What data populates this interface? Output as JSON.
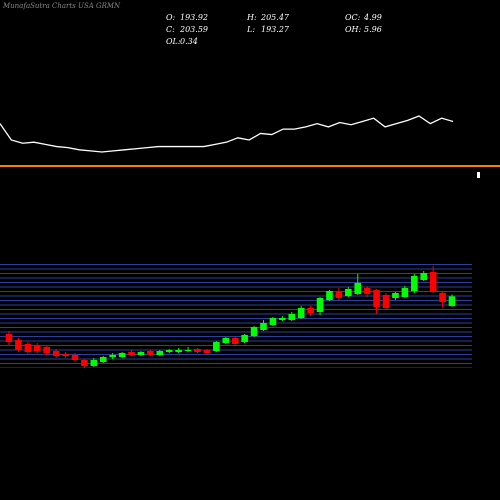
{
  "chart_data": {
    "type": "candlestick",
    "title": "MunafaSutra Charts USA GRMN",
    "stats": [
      {
        "label": "O:",
        "value": "193.92"
      },
      {
        "label": "H:",
        "value": "205.47"
      },
      {
        "label": "OC:",
        "value": "4.99"
      },
      {
        "label": "C:",
        "value": "203.59"
      },
      {
        "label": "L:",
        "value": "193.27"
      },
      {
        "label": "OH:",
        "value": "5.96"
      },
      {
        "label": "OL:",
        "value": "0.34"
      }
    ],
    "up_color": "#00ff00",
    "down_color": "#ff0000",
    "indicator": {
      "color": "#ffffff",
      "values": [
        75,
        60,
        57,
        58,
        56,
        54,
        53,
        51,
        50,
        49,
        50,
        51,
        52,
        53,
        54,
        54,
        54,
        54,
        54,
        56,
        58,
        62,
        60,
        66,
        65,
        70,
        70,
        72,
        75,
        72,
        76,
        74,
        77,
        80,
        72,
        75,
        78,
        82,
        75,
        80,
        77
      ]
    },
    "open": [
      166,
      160,
      156,
      155,
      153,
      149,
      146,
      145,
      140,
      134,
      138,
      143,
      143,
      148,
      145,
      149,
      145,
      148,
      148,
      149,
      151,
      150,
      149,
      157,
      162,
      158,
      164,
      170,
      175,
      180,
      180,
      182,
      192,
      188,
      200,
      209,
      204,
      206,
      212,
      210,
      205,
      202,
      203,
      209,
      220,
      228,
      207,
      193.92
    ],
    "high": [
      169,
      162,
      158,
      157,
      155,
      151,
      148,
      147,
      141,
      142,
      144,
      147,
      148,
      150,
      149,
      150,
      150,
      151,
      152,
      153,
      152,
      151,
      159,
      163,
      163,
      166,
      174,
      180,
      183,
      184,
      188,
      194,
      194,
      203,
      210,
      212,
      213,
      226,
      214,
      211,
      207,
      208,
      214,
      226,
      229,
      234,
      209,
      205.47
    ],
    "low": [
      155,
      148,
      146,
      147,
      145,
      142,
      142,
      138,
      132,
      133,
      137,
      141,
      142,
      144,
      144,
      144,
      144,
      147,
      147,
      148,
      147,
      146,
      148,
      156,
      155,
      157,
      163,
      169,
      174,
      179,
      179,
      181,
      184,
      185,
      199,
      200,
      203,
      205,
      203,
      186,
      190,
      200,
      202,
      207,
      219,
      207,
      193,
      193.27
    ],
    "close": [
      158,
      150,
      148,
      149,
      147,
      144,
      144,
      140,
      134,
      140,
      143,
      145,
      147,
      145,
      148,
      145,
      149,
      150,
      150,
      150,
      148,
      147,
      158,
      162,
      156,
      165,
      173,
      177,
      182,
      182,
      186,
      192,
      187,
      202,
      209,
      202,
      211,
      217,
      206,
      193,
      192,
      207,
      212,
      224,
      227,
      208,
      198,
      203.59
    ]
  }
}
